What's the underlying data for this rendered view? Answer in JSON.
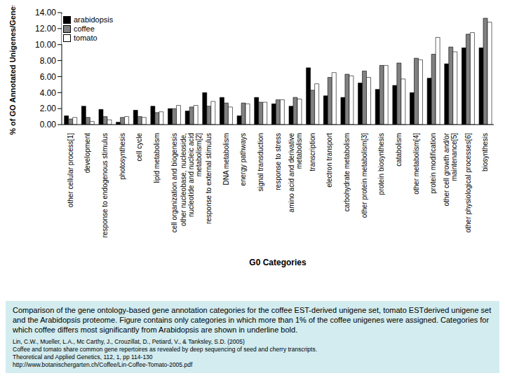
{
  "chart_data": {
    "type": "bar",
    "y_label": "% of GO Annotated Unigenes/Genes",
    "x_label": "G0 Categories",
    "categories": [
      "other cellular process[1]",
      "development",
      "response to endogenous stimulus",
      "photosynthesis",
      "cell cycle",
      "lipid metabolism",
      "cell organization and biogenesis",
      "other nucleobase, nucleoside, nucleotide and nucleic acid metabolism[2]",
      "response to external stimulus",
      "DNA metabolism",
      "energy pathways",
      "signal transduction",
      "response to stress",
      "amino acid and derivative metabolism",
      "transcription",
      "electron transport",
      "carbohydrate metabolism",
      "other protein metabolism[3]",
      "protein biosynthesis",
      "catabolism",
      "other metabolism[4]",
      "protein modification",
      "other cell growth and/or maintenance[5]",
      "other physiological processes[6]",
      "biosynthesis"
    ],
    "series": [
      {
        "name": "arabidopsis",
        "color": "#000000",
        "values": [
          1.1,
          2.3,
          1.9,
          0.3,
          1.8,
          2.3,
          2.0,
          1.7,
          4.0,
          3.4,
          1.1,
          3.4,
          2.6,
          2.3,
          7.1,
          3.6,
          3.4,
          5.2,
          4.4,
          4.9,
          4.0,
          5.8,
          7.6,
          9.6,
          9.6
        ]
      },
      {
        "name": "coffee",
        "color": "#808080",
        "values": [
          0.7,
          0.9,
          1.0,
          0.9,
          1.0,
          1.5,
          2.0,
          2.2,
          2.3,
          2.7,
          2.7,
          2.8,
          3.1,
          3.4,
          4.3,
          5.9,
          6.3,
          6.7,
          7.4,
          7.7,
          8.3,
          8.8,
          9.7,
          11.3,
          13.3
        ]
      },
      {
        "name": "tomato",
        "color": "#ffffff",
        "values": [
          0.9,
          0.4,
          0.6,
          1.0,
          0.9,
          1.6,
          2.4,
          2.4,
          2.9,
          2.2,
          2.6,
          2.8,
          3.1,
          3.2,
          5.1,
          6.5,
          6.1,
          5.9,
          7.4,
          5.7,
          8.1,
          10.9,
          9.1,
          11.5,
          12.8
        ]
      }
    ],
    "ylim": [
      0,
      14
    ],
    "yticks": [
      {
        "value": 0,
        "label": "0.00"
      },
      {
        "value": 2,
        "label": "2.00"
      },
      {
        "value": 4,
        "label": "4.00"
      },
      {
        "value": 6,
        "label": "6.00"
      },
      {
        "value": 8,
        "label": "8.00"
      },
      {
        "value": 10,
        "label": "10.00"
      },
      {
        "value": 12,
        "label": "12.00"
      },
      {
        "value": 14,
        "label": "14.00"
      }
    ],
    "grid": false,
    "legend": "upper left"
  },
  "caption": "Comparison of the gene ontology-based gene annotation categories for the coffee EST-derived unigene set, tomato ESTderived unigene set and the Arabidopsis proteome. Figure contains only categories in which more than 1% of the coffee unigenes were assigned. Categories for which coffee differs most significantly from Arabidopsis are shown in underline bold.",
  "citation": [
    "Lin, C.W., Mueller, L.A., Mc Carthy, J., Crouzillat, D., Petiard, V., & Tanksley, S.D. (2005)",
    "Coffee and tomato share common gene repertoires as revealed by deep sequencing of seed and cherry transcripts.",
    "Theoretical and Applied Genetics, 112, 1, pp 114-130",
    "http://www.botanischergarten.ch/Coffee/Lin-Coffee-Tomato-2005.pdf"
  ]
}
